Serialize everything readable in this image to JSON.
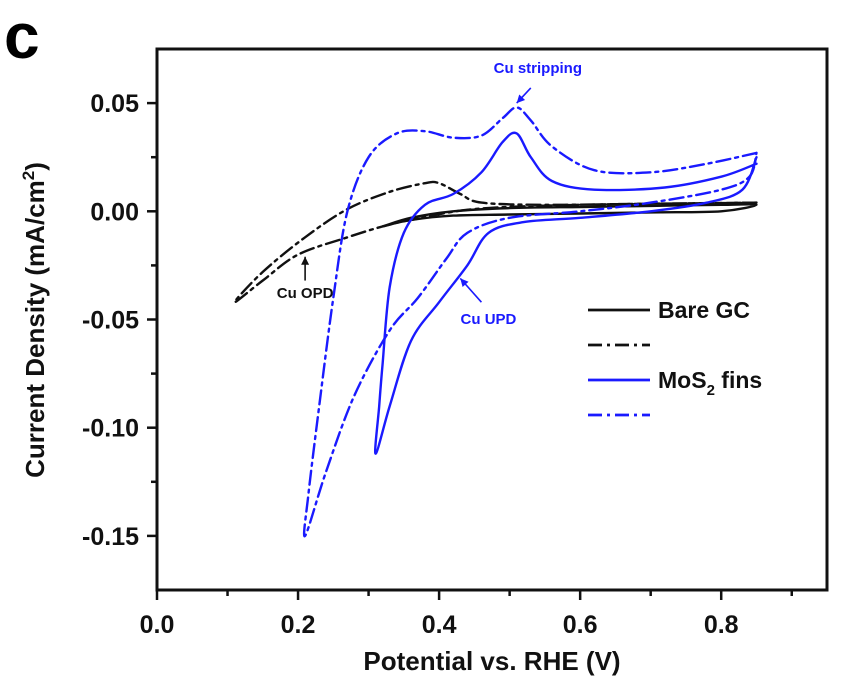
{
  "panel_label": "c",
  "chart_data": {
    "type": "line",
    "title": "",
    "xlabel": "Potential vs. RHE (V)",
    "ylabel_main": "Current Density (mA/cm",
    "ylabel_sup": "2",
    "ylabel_end": ")",
    "xlim": [
      0.0,
      0.95
    ],
    "ylim": [
      -0.175,
      0.075
    ],
    "x_ticks": [
      0.0,
      0.2,
      0.4,
      0.6,
      0.8
    ],
    "x_tick_labels": [
      "0.0",
      "0.2",
      "0.4",
      "0.6",
      "0.8"
    ],
    "x_minor_ticks": [
      0.1,
      0.3,
      0.5,
      0.7,
      0.9
    ],
    "y_ticks": [
      0.05,
      0.0,
      -0.05,
      -0.1,
      -0.15
    ],
    "y_tick_labels": [
      "0.05",
      "0.00",
      "-0.05",
      "-0.10",
      "-0.15"
    ],
    "y_minor_ticks": [
      0.025,
      -0.025,
      -0.075,
      -0.125
    ],
    "grid": false,
    "legend_position": "center-right",
    "colors": {
      "black": "#111111",
      "blue": "#1a1aff"
    },
    "series": [
      {
        "name": "Bare GC",
        "legend_label": "Bare GC",
        "color": "black",
        "style": "solid",
        "points": [
          [
            0.32,
            -0.007
          ],
          [
            0.36,
            -0.004
          ],
          [
            0.42,
            -0.002
          ],
          [
            0.5,
            -0.0015
          ],
          [
            0.6,
            -0.001
          ],
          [
            0.7,
            -0.0005
          ],
          [
            0.8,
            0.0
          ],
          [
            0.85,
            0.003
          ],
          [
            0.8,
            0.003
          ],
          [
            0.7,
            0.0025
          ],
          [
            0.6,
            0.002
          ],
          [
            0.5,
            0.0015
          ],
          [
            0.42,
            0.0
          ],
          [
            0.36,
            -0.003
          ],
          [
            0.32,
            -0.007
          ]
        ]
      },
      {
        "name": "Bare GC (dash-dot)",
        "legend_label": "",
        "color": "black",
        "style": "dashdot",
        "points": [
          [
            0.85,
            0.004
          ],
          [
            0.7,
            0.0035
          ],
          [
            0.55,
            0.003
          ],
          [
            0.46,
            0.004
          ],
          [
            0.43,
            0.008
          ],
          [
            0.4,
            0.013
          ],
          [
            0.38,
            0.013
          ],
          [
            0.33,
            0.009
          ],
          [
            0.27,
            0.001
          ],
          [
            0.21,
            -0.012
          ],
          [
            0.15,
            -0.028
          ],
          [
            0.11,
            -0.042
          ],
          [
            0.15,
            -0.032
          ],
          [
            0.2,
            -0.02
          ],
          [
            0.27,
            -0.012
          ],
          [
            0.32,
            -0.007
          ],
          [
            0.36,
            -0.004
          ],
          [
            0.45,
            0.001
          ],
          [
            0.6,
            0.003
          ],
          [
            0.85,
            0.004
          ]
        ]
      },
      {
        "name": "MoS2 fins",
        "legend_label": "MoS2 fins",
        "color": "blue",
        "style": "solid",
        "points": [
          [
            0.85,
            0.022
          ],
          [
            0.8,
            0.016
          ],
          [
            0.72,
            0.011
          ],
          [
            0.62,
            0.01
          ],
          [
            0.56,
            0.014
          ],
          [
            0.53,
            0.025
          ],
          [
            0.51,
            0.036
          ],
          [
            0.49,
            0.032
          ],
          [
            0.46,
            0.018
          ],
          [
            0.42,
            0.008
          ],
          [
            0.38,
            0.003
          ],
          [
            0.35,
            -0.01
          ],
          [
            0.33,
            -0.035
          ],
          [
            0.32,
            -0.07
          ],
          [
            0.315,
            -0.09
          ],
          [
            0.31,
            -0.112
          ],
          [
            0.33,
            -0.09
          ],
          [
            0.36,
            -0.06
          ],
          [
            0.4,
            -0.042
          ],
          [
            0.44,
            -0.025
          ],
          [
            0.47,
            -0.01
          ],
          [
            0.52,
            -0.005
          ],
          [
            0.6,
            -0.003
          ],
          [
            0.7,
            0.0
          ],
          [
            0.78,
            0.004
          ],
          [
            0.83,
            0.01
          ],
          [
            0.85,
            0.025
          ]
        ]
      },
      {
        "name": "MoS2 fins (dash-dot)",
        "legend_label": "",
        "color": "blue",
        "style": "dashdot",
        "points": [
          [
            0.85,
            0.027
          ],
          [
            0.78,
            0.022
          ],
          [
            0.7,
            0.018
          ],
          [
            0.62,
            0.019
          ],
          [
            0.56,
            0.03
          ],
          [
            0.53,
            0.042
          ],
          [
            0.51,
            0.048
          ],
          [
            0.49,
            0.043
          ],
          [
            0.46,
            0.035
          ],
          [
            0.42,
            0.034
          ],
          [
            0.38,
            0.037
          ],
          [
            0.34,
            0.036
          ],
          [
            0.3,
            0.025
          ],
          [
            0.27,
            0.0
          ],
          [
            0.25,
            -0.04
          ],
          [
            0.23,
            -0.09
          ],
          [
            0.215,
            -0.13
          ],
          [
            0.21,
            -0.15
          ],
          [
            0.24,
            -0.12
          ],
          [
            0.28,
            -0.085
          ],
          [
            0.33,
            -0.055
          ],
          [
            0.37,
            -0.04
          ],
          [
            0.41,
            -0.022
          ],
          [
            0.44,
            -0.01
          ],
          [
            0.5,
            -0.003
          ],
          [
            0.6,
            0.0
          ],
          [
            0.7,
            0.004
          ],
          [
            0.8,
            0.01
          ],
          [
            0.84,
            0.016
          ],
          [
            0.85,
            0.027
          ]
        ]
      }
    ],
    "legend": [
      {
        "label": "Bare GC",
        "sub": "",
        "label_end": "",
        "color": "black",
        "style": "solid"
      },
      {
        "label": "",
        "sub": "",
        "label_end": "",
        "color": "black",
        "style": "dashdot"
      },
      {
        "label": "MoS",
        "sub": "2",
        "label_end": " fins",
        "color": "blue",
        "style": "solid"
      },
      {
        "label": "",
        "sub": "",
        "label_end": "",
        "color": "blue",
        "style": "dashdot"
      }
    ],
    "annotations": [
      {
        "text": "Cu stripping",
        "color": "blue",
        "text_at": [
          0.54,
          0.064
        ],
        "arrow_from": [
          0.53,
          0.057
        ],
        "arrow_to": [
          0.51,
          0.05
        ]
      },
      {
        "text": "Cu OPD",
        "color": "black",
        "text_at": [
          0.21,
          -0.04
        ],
        "arrow_from": [
          0.21,
          -0.032
        ],
        "arrow_to": [
          0.21,
          -0.021
        ]
      },
      {
        "text": "Cu UPD",
        "color": "blue",
        "text_at": [
          0.47,
          -0.052
        ],
        "arrow_from": [
          0.46,
          -0.042
        ],
        "arrow_to": [
          0.43,
          -0.031
        ]
      }
    ]
  }
}
